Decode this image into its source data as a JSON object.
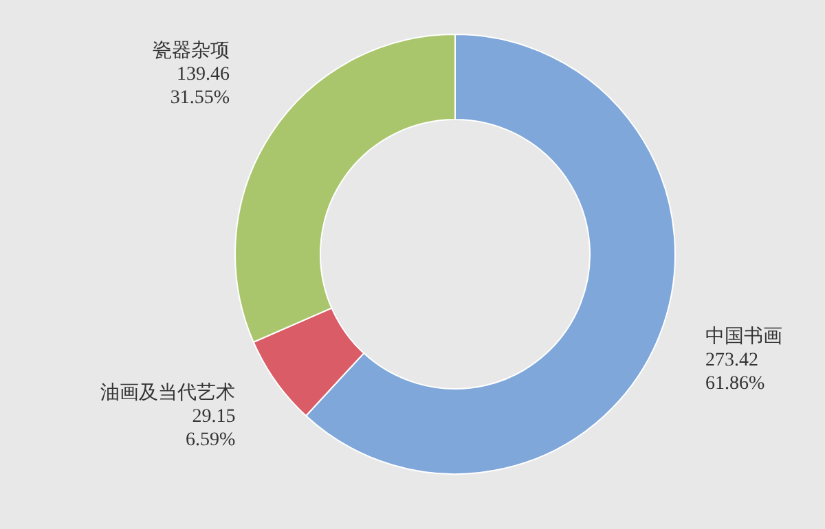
{
  "chart_data": {
    "type": "donut",
    "categories": [
      "中国书画",
      "油画及当代艺术",
      "瓷器杂项"
    ],
    "values": [
      273.42,
      29.15,
      139.46
    ],
    "colors": [
      "#7fa7da",
      "#d95c66",
      "#aac66c"
    ],
    "data_labels": true,
    "annotations": [
      "61.86%",
      "6.59%",
      "31.55%"
    ]
  }
}
